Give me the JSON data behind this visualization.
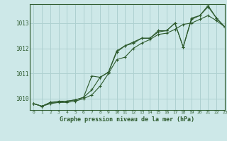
{
  "title": "Graphe pression niveau de la mer (hPa)",
  "background_color": "#cde8e8",
  "grid_color": "#aed0d0",
  "line_color": "#2d5a2d",
  "xlim": [
    -0.5,
    23
  ],
  "ylim": [
    1009.55,
    1013.75
  ],
  "yticks": [
    1010,
    1011,
    1012,
    1013
  ],
  "xticks": [
    0,
    1,
    2,
    3,
    4,
    5,
    6,
    7,
    8,
    9,
    10,
    11,
    12,
    13,
    14,
    15,
    16,
    17,
    18,
    19,
    20,
    21,
    22,
    23
  ],
  "series1_x": [
    0,
    1,
    2,
    3,
    4,
    5,
    6,
    7,
    8,
    9,
    10,
    11,
    12,
    13,
    14,
    15,
    16,
    17,
    18,
    19,
    20,
    21,
    22,
    23
  ],
  "series1_y": [
    1009.8,
    1009.7,
    1009.8,
    1009.85,
    1009.85,
    1009.9,
    1010.0,
    1010.15,
    1010.5,
    1011.0,
    1011.55,
    1011.65,
    1012.0,
    1012.2,
    1012.35,
    1012.55,
    1012.6,
    1012.75,
    1012.95,
    1013.0,
    1013.15,
    1013.3,
    1013.1,
    1012.85
  ],
  "series2_x": [
    0,
    1,
    2,
    3,
    4,
    5,
    6,
    7,
    8,
    9,
    10,
    11,
    12,
    13,
    14,
    15,
    16,
    17,
    18,
    19,
    20,
    21,
    22,
    23
  ],
  "series2_y": [
    1009.8,
    1009.7,
    1009.85,
    1009.85,
    1009.9,
    1009.95,
    1010.05,
    1010.35,
    1010.85,
    1011.05,
    1011.85,
    1012.1,
    1012.25,
    1012.4,
    1012.4,
    1012.65,
    1012.7,
    1013.0,
    1012.05,
    1013.15,
    1013.3,
    1013.65,
    1013.2,
    1012.85
  ],
  "series3_x": [
    0,
    1,
    2,
    3,
    4,
    5,
    6,
    7,
    8,
    9,
    10,
    11,
    12,
    13,
    14,
    15,
    16,
    17,
    18,
    19,
    20,
    21,
    22,
    23
  ],
  "series3_y": [
    1009.8,
    1009.7,
    1009.85,
    1009.9,
    1009.9,
    1009.95,
    1010.05,
    1010.9,
    1010.85,
    1011.05,
    1011.9,
    1012.1,
    1012.2,
    1012.4,
    1012.4,
    1012.7,
    1012.7,
    1013.0,
    1012.05,
    1013.2,
    1013.3,
    1013.7,
    1013.2,
    1012.85
  ]
}
